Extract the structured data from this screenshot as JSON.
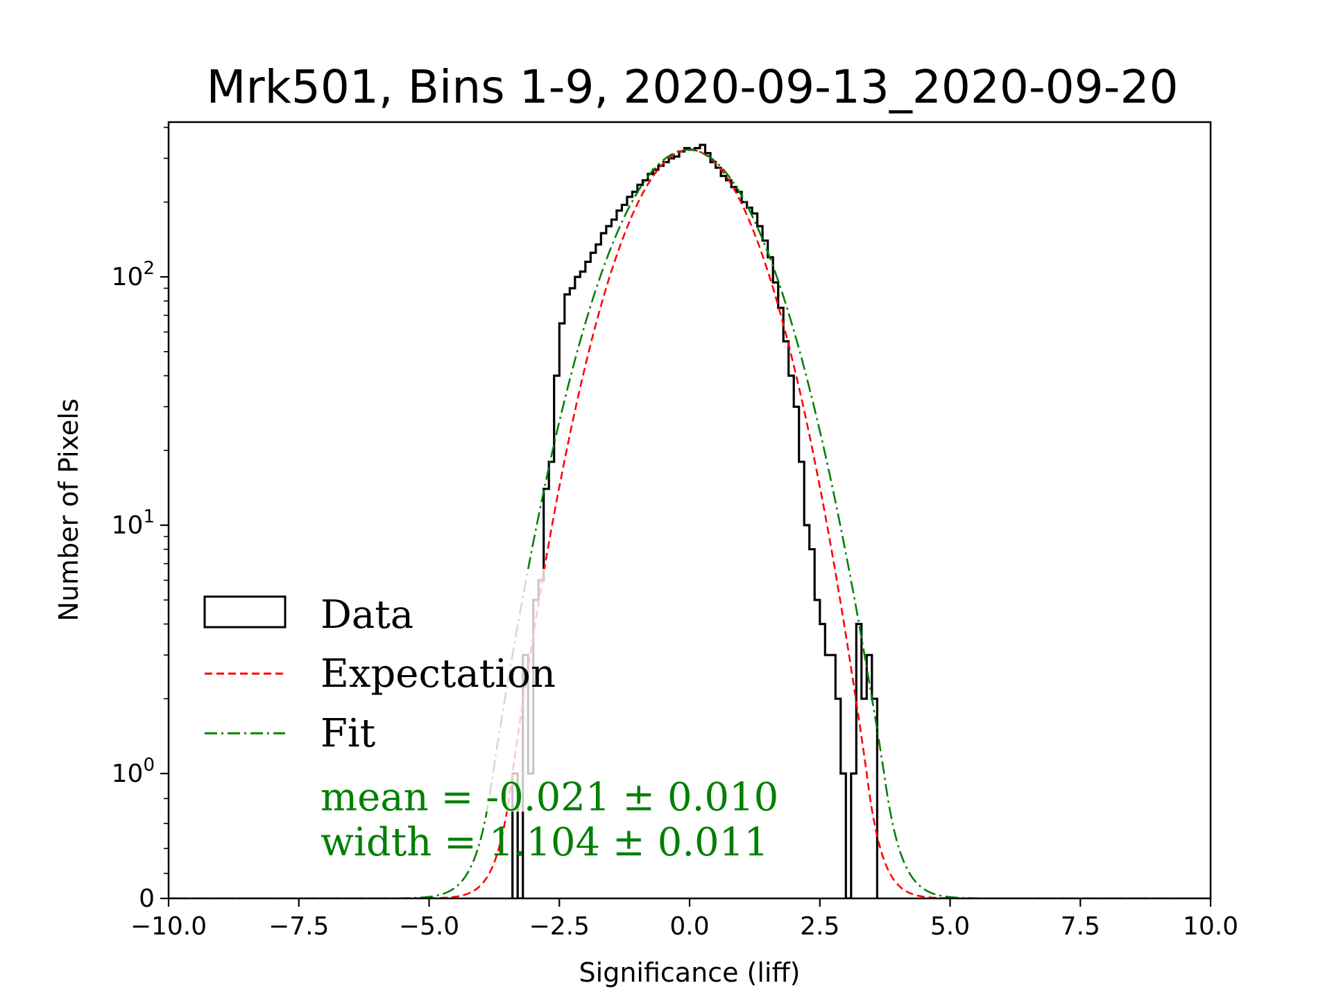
{
  "chart_data": {
    "type": "histogram",
    "title": "Mrk501, Bins 1-9, 2020-09-13_2020-09-20",
    "xlabel": "Significance (liff)",
    "ylabel": "Number of Pixels",
    "xlim": [
      -10,
      10
    ],
    "ylim": [
      0,
      420
    ],
    "y_scale": "symlog",
    "grid": false,
    "x_ticks": [
      {
        "value": -10,
        "label": "−10.0"
      },
      {
        "value": -7.5,
        "label": "−7.5"
      },
      {
        "value": -5,
        "label": "−5.0"
      },
      {
        "value": -2.5,
        "label": "−2.5"
      },
      {
        "value": 0,
        "label": "0.0"
      },
      {
        "value": 2.5,
        "label": "2.5"
      },
      {
        "value": 5,
        "label": "5.0"
      },
      {
        "value": 7.5,
        "label": "7.5"
      },
      {
        "value": 10,
        "label": "10.0"
      }
    ],
    "y_ticks": [
      {
        "value": 0,
        "base": "0",
        "exp": ""
      },
      {
        "value": 1,
        "base": "10",
        "exp": "0"
      },
      {
        "value": 10,
        "base": "10",
        "exp": "1"
      },
      {
        "value": 100,
        "base": "10",
        "exp": "2"
      }
    ],
    "series": [
      {
        "name": "Data",
        "kind": "step-histogram",
        "color": "#000000",
        "x_edges": [
          -3.4,
          -3.3,
          -3.2,
          -3.1,
          -3.0,
          -2.9,
          -2.8,
          -2.7,
          -2.6,
          -2.5,
          -2.4,
          -2.3,
          -2.2,
          -2.1,
          -2.0,
          -1.9,
          -1.8,
          -1.7,
          -1.6,
          -1.5,
          -1.4,
          -1.3,
          -1.2,
          -1.1,
          -1.0,
          -0.9,
          -0.8,
          -0.7,
          -0.6,
          -0.5,
          -0.4,
          -0.3,
          -0.2,
          -0.1,
          0.0,
          0.1,
          0.2,
          0.3,
          0.4,
          0.5,
          0.6,
          0.7,
          0.8,
          0.9,
          1.0,
          1.1,
          1.2,
          1.3,
          1.4,
          1.5,
          1.6,
          1.7,
          1.8,
          1.9,
          2.0,
          2.1,
          2.2,
          2.3,
          2.4,
          2.5,
          2.6,
          2.7,
          2.8,
          2.9,
          3.0,
          3.1,
          3.2,
          3.3,
          3.4,
          3.5,
          3.6
        ],
        "counts": [
          1,
          0,
          3,
          1,
          5,
          6,
          14,
          18,
          40,
          65,
          85,
          90,
          100,
          105,
          115,
          125,
          135,
          150,
          160,
          170,
          185,
          195,
          210,
          220,
          235,
          245,
          260,
          270,
          280,
          290,
          300,
          305,
          320,
          330,
          325,
          330,
          340,
          315,
          290,
          275,
          255,
          245,
          230,
          220,
          200,
          190,
          180,
          160,
          140,
          120,
          95,
          75,
          55,
          40,
          30,
          18,
          10,
          8,
          5,
          4,
          3,
          3,
          2,
          1,
          0,
          1,
          4,
          2,
          3,
          2
        ]
      },
      {
        "name": "Expectation",
        "kind": "gaussian",
        "color": "#ff0000",
        "style": "dashed",
        "amplitude": 325,
        "mean": 0.0,
        "sigma": 1.0
      },
      {
        "name": "Fit",
        "kind": "gaussian",
        "color": "#008000",
        "style": "dash-dot",
        "amplitude": 325,
        "mean": -0.021,
        "sigma": 1.104
      }
    ],
    "legend": {
      "placement": "lower-left",
      "entries": [
        "Data",
        "Expectation",
        "Fit"
      ]
    },
    "annotations": [
      {
        "text": "mean = -0.021 ± 0.010",
        "color": "#008000"
      },
      {
        "text": "width = 1.104 ± 0.011",
        "color": "#008000"
      }
    ]
  }
}
